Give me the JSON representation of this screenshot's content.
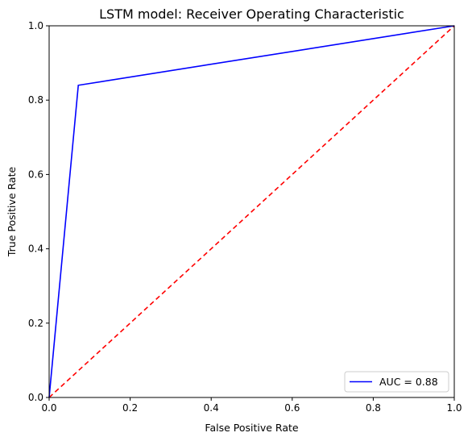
{
  "chart_data": {
    "type": "line",
    "title": "LSTM model: Receiver Operating Characteristic",
    "xlabel": "False Positive Rate",
    "ylabel": "True Positive Rate",
    "xlim": [
      0,
      1
    ],
    "ylim": [
      0,
      1
    ],
    "xticks": [
      "0.0",
      "0.2",
      "0.4",
      "0.6",
      "0.8",
      "1.0"
    ],
    "yticks": [
      "0.0",
      "0.2",
      "0.4",
      "0.6",
      "0.8",
      "1.0"
    ],
    "grid": false,
    "legend_position": "lower-right",
    "series": [
      {
        "name": "AUC = 0.88",
        "color": "#0000ff",
        "style": "solid",
        "x": [
          0.0,
          0.072,
          1.0
        ],
        "y": [
          0.0,
          0.84,
          1.0
        ]
      },
      {
        "color": "#ff0000",
        "style": "dashed",
        "x": [
          0.0,
          1.0
        ],
        "y": [
          0.0,
          1.0
        ]
      }
    ]
  }
}
